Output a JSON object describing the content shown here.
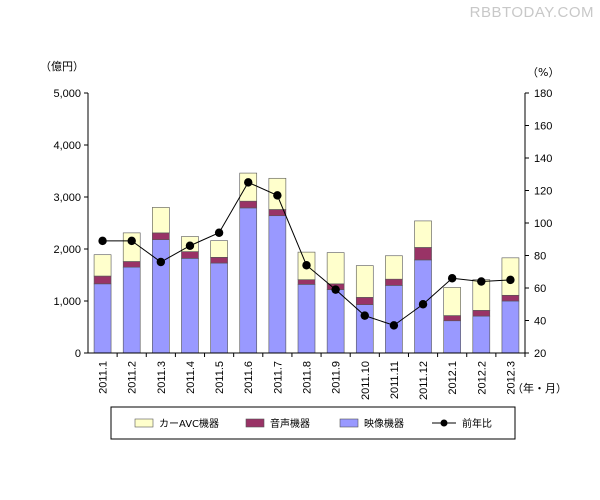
{
  "watermark": "RBBTODAY.COM",
  "chart_data": {
    "type": "bar",
    "stacked": true,
    "categories": [
      "2011.1",
      "2011.2",
      "2011.3",
      "2011.4",
      "2011.5",
      "2011.6",
      "2011.7",
      "2011.8",
      "2011.9",
      "2011.10",
      "2011.11",
      "2011.12",
      "2012.1",
      "2012.2",
      "2012.3"
    ],
    "y_left": {
      "unit": "（億円）",
      "range": [
        0,
        5000
      ],
      "ticks": [
        0,
        1000,
        2000,
        3000,
        4000,
        5000
      ],
      "tick_labels": [
        "0",
        "1,000",
        "2,000",
        "3,000",
        "4,000",
        "5,000"
      ]
    },
    "y_right": {
      "unit": "（%）",
      "range": [
        20,
        180
      ],
      "ticks": [
        20,
        40,
        60,
        80,
        100,
        120,
        140,
        160,
        180
      ],
      "tick_labels": [
        "20",
        "40",
        "60",
        "80",
        "100",
        "120",
        "140",
        "160",
        "180"
      ]
    },
    "x_unit": "（年・月）",
    "series": [
      {
        "name": "映像機器",
        "kind": "bar",
        "color": "#9999ff",
        "values": [
          1330,
          1650,
          2180,
          1820,
          1730,
          2790,
          2640,
          1320,
          1220,
          930,
          1300,
          1790,
          620,
          710,
          1000
        ]
      },
      {
        "name": "音声機器",
        "kind": "bar",
        "color": "#993366",
        "values": [
          150,
          110,
          130,
          130,
          110,
          130,
          120,
          90,
          110,
          140,
          120,
          240,
          100,
          110,
          110
        ]
      },
      {
        "name": "カーAVC機器",
        "kind": "bar",
        "color": "#ffffcc",
        "values": [
          410,
          550,
          490,
          290,
          320,
          540,
          600,
          530,
          600,
          610,
          450,
          510,
          540,
          590,
          720
        ]
      },
      {
        "name": "前年比",
        "kind": "line",
        "axis": "right",
        "color": "#000000",
        "values": [
          89,
          89,
          76,
          86,
          94,
          125,
          117,
          74,
          59,
          43,
          37,
          50,
          66,
          64,
          65
        ]
      }
    ],
    "legend_order": [
      "カーAVC機器",
      "音声機器",
      "映像機器",
      "前年比"
    ],
    "legend_position": "bottom",
    "grid": false
  }
}
